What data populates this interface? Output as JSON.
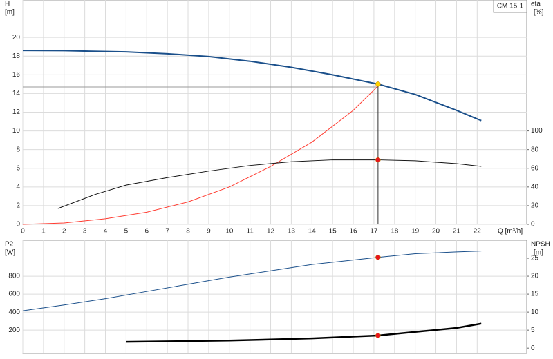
{
  "chart_data": [
    {
      "type": "line",
      "title": "CM 15-1",
      "y_label": "H",
      "y_unit": "[m]",
      "y2_label": "eta",
      "y2_unit": "[%]",
      "x_label": "Q [m³/h]",
      "xlim": [
        0,
        24.4
      ],
      "xticks": [
        0,
        1,
        2,
        3,
        4,
        5,
        6,
        7,
        8,
        9,
        10,
        11,
        12,
        13,
        14,
        15,
        16,
        17,
        18,
        19,
        20,
        21,
        22
      ],
      "ylim": [
        0,
        24
      ],
      "yticks": [
        0,
        2,
        4,
        6,
        8,
        10,
        12,
        14,
        16,
        18,
        20
      ],
      "y2lim": [
        0,
        240
      ],
      "y2ticks": [
        0,
        20,
        40,
        60,
        80,
        100
      ],
      "grid": true,
      "series": [
        {
          "color": "#999999",
          "width": 1,
          "x": [
            0,
            17.2
          ],
          "values": [
            14.7,
            14.7
          ]
        },
        {
          "color": "#333333",
          "width": 1,
          "x": [
            17.2,
            17.2
          ],
          "values": [
            0,
            15.0
          ]
        },
        {
          "color": "#1a4f8a",
          "width": 2,
          "x": [
            0,
            2,
            5,
            7,
            9,
            11,
            13,
            15,
            17.2,
            19,
            21,
            22.2
          ],
          "values": [
            18.6,
            18.58,
            18.45,
            18.25,
            17.95,
            17.45,
            16.8,
            16.0,
            15.0,
            13.9,
            12.2,
            11.1
          ]
        },
        {
          "color": "#ff3b30",
          "width": 1,
          "x": [
            0,
            2,
            4,
            6,
            8,
            10,
            12,
            14,
            16,
            17.2
          ],
          "values": [
            0,
            0.15,
            0.6,
            1.3,
            2.4,
            4.0,
            6.2,
            8.8,
            12.2,
            14.8
          ]
        },
        {
          "color": "#111111",
          "width": 1,
          "axis": "y2",
          "x": [
            1.7,
            3.5,
            5,
            7,
            9,
            11,
            13,
            15,
            17.2,
            19,
            21,
            22.2
          ],
          "values": [
            17,
            32,
            42,
            50,
            57,
            63,
            67,
            69,
            69,
            68,
            65,
            62
          ]
        },
        {
          "color": "#ffd400",
          "marker": true,
          "x": [
            17.2
          ],
          "values": [
            15.0
          ]
        },
        {
          "color": "#e8141c",
          "marker": true,
          "axis": "y2",
          "x": [
            17.2
          ],
          "values": [
            69
          ]
        }
      ]
    },
    {
      "type": "line",
      "y_label": "P2",
      "y_unit": "[W]",
      "y2_label": "NPSH",
      "y2_unit": "[m]",
      "xlim": [
        0,
        24.4
      ],
      "ylim": [
        -60,
        1200
      ],
      "yticks": [
        200,
        400,
        600,
        800
      ],
      "y2lim": [
        -1.5,
        30
      ],
      "y2ticks": [
        0,
        5,
        10,
        15,
        20,
        25
      ],
      "grid": true,
      "series": [
        {
          "color": "#1a4f8a",
          "width": 1,
          "x": [
            0,
            2,
            4,
            6,
            8,
            10,
            12,
            14,
            16,
            17.2,
            19,
            21,
            22.2
          ],
          "values": [
            415,
            480,
            550,
            630,
            710,
            790,
            860,
            930,
            980,
            1010,
            1050,
            1070,
            1080
          ]
        },
        {
          "color": "#000000",
          "width": 2.5,
          "axis": "y2",
          "x": [
            5,
            10,
            14,
            17.2,
            19,
            21,
            22.2
          ],
          "values": [
            1.75,
            2.1,
            2.7,
            3.5,
            4.5,
            5.6,
            6.8
          ]
        },
        {
          "color": "#e8141c",
          "marker": true,
          "x": [
            17.2
          ],
          "values": [
            1010
          ]
        },
        {
          "color": "#e8141c",
          "marker": true,
          "axis": "y2",
          "x": [
            17.2
          ],
          "values": [
            3.5
          ]
        }
      ]
    }
  ]
}
